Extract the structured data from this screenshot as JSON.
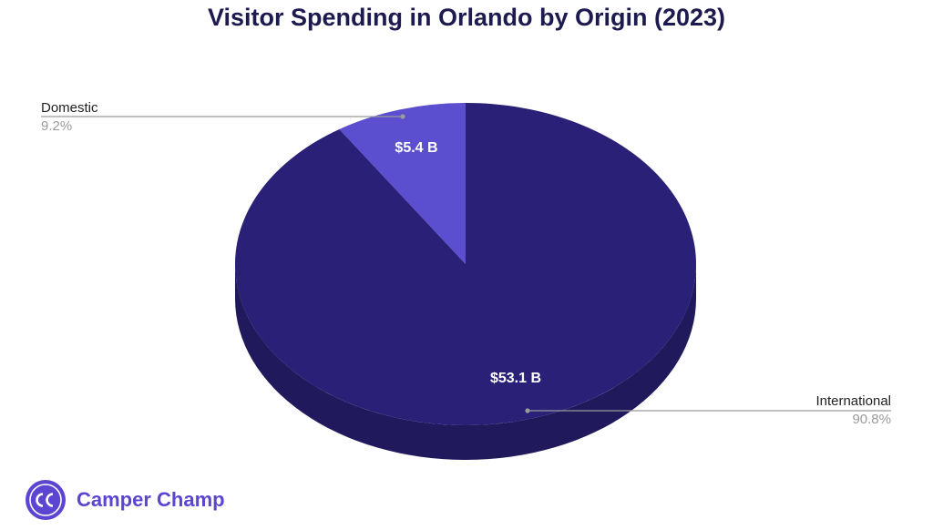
{
  "chart_data": {
    "type": "pie",
    "title": "Visitor Spending in Orlando by Origin (2023)",
    "slices": [
      {
        "label": "Domestic",
        "percent_label": "9.2%",
        "value_label": "$5.4 B",
        "value": 5.4,
        "percent": 9.2,
        "color": "#5b4fcf"
      },
      {
        "label": "International",
        "percent_label": "90.8%",
        "value_label": "$53.1 B",
        "value": 53.1,
        "percent": 90.8,
        "color": "#2a2077"
      }
    ],
    "style": "3d",
    "side_color": "#201a5c",
    "leader_color": "#9a9a9a"
  },
  "brand": {
    "name": "Camper Champ",
    "logo_text": "CC",
    "color": "#5b45d1"
  }
}
